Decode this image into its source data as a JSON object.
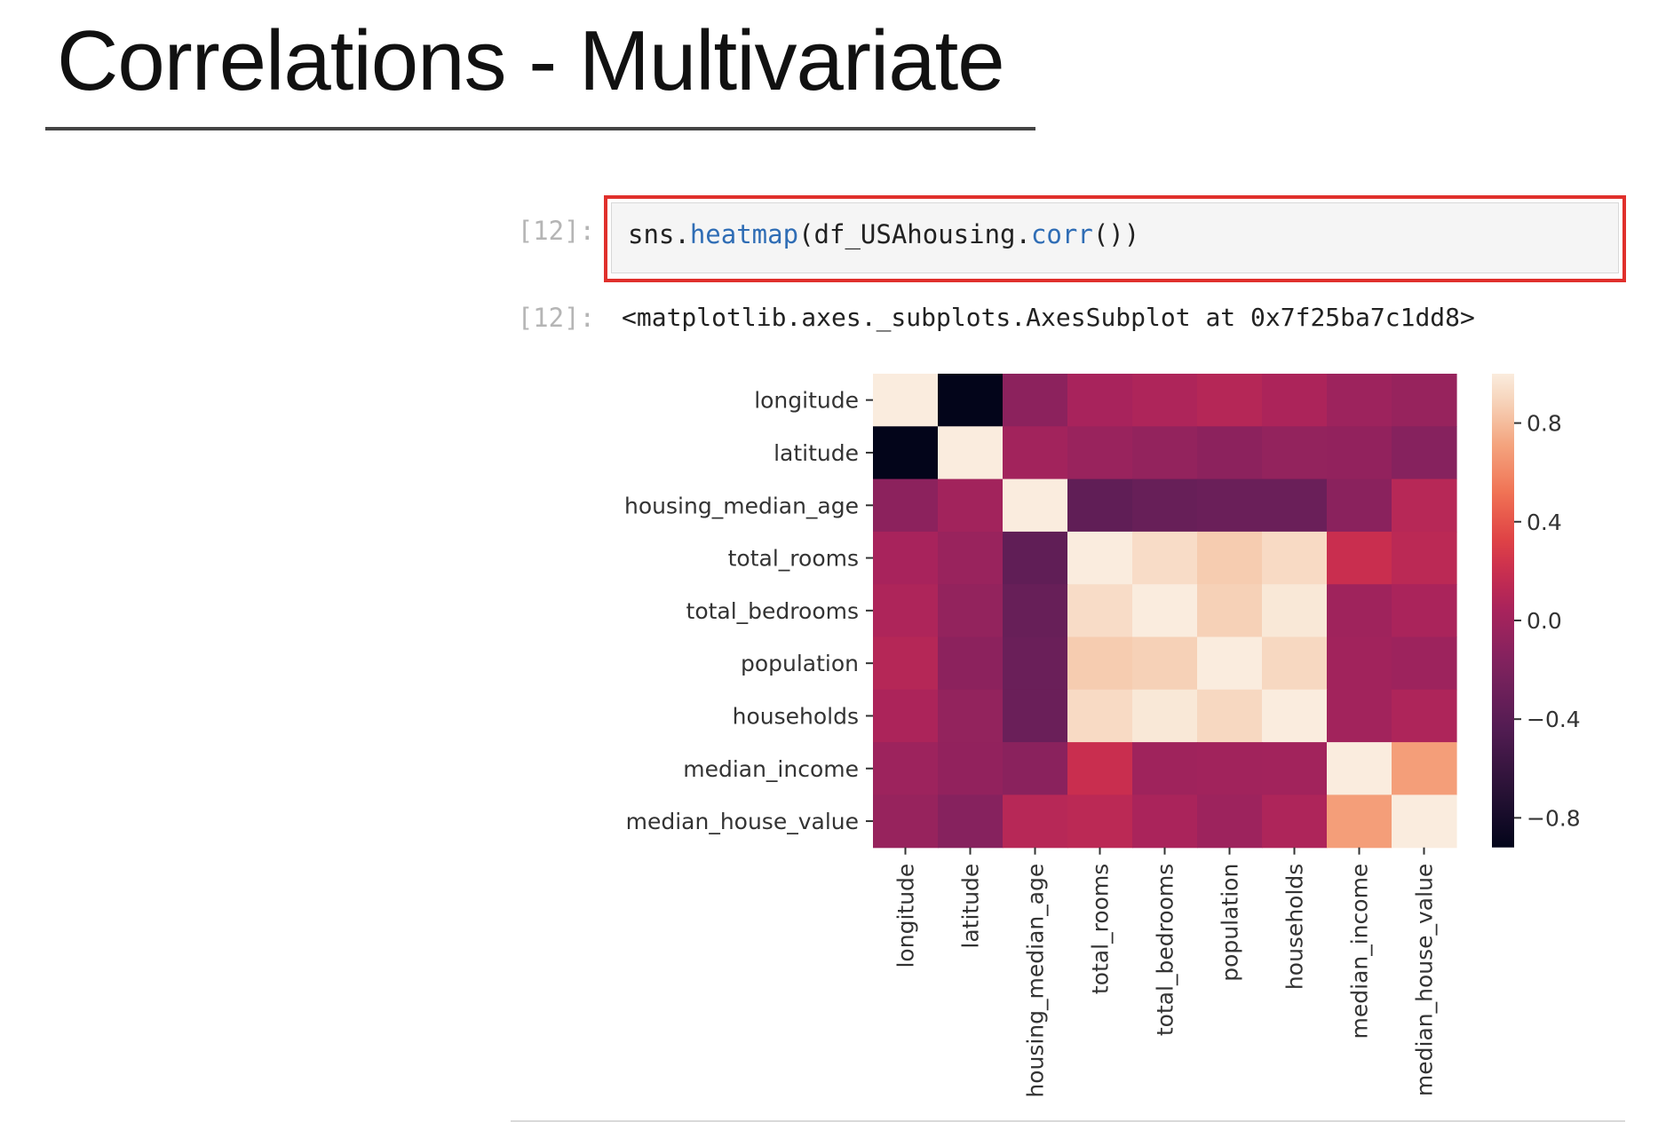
{
  "slide": {
    "title": "Correlations - Multivariate"
  },
  "notebook": {
    "input_prompt": "[12]:",
    "output_prompt": "[12]:",
    "code": {
      "obj": "sns.",
      "fn": "heatmap",
      "arg_start": "(df_USAhousing.",
      "method": "corr",
      "arg_end": "())"
    },
    "output_text": "<matplotlib.axes._subplots.AxesSubplot at 0x7f25ba7c1dd8>"
  },
  "chart_data": {
    "type": "heatmap",
    "title": "",
    "xlabel": "",
    "ylabel": "",
    "labels": [
      "longitude",
      "latitude",
      "housing_median_age",
      "total_rooms",
      "total_bedrooms",
      "population",
      "households",
      "median_income",
      "median_house_value"
    ],
    "matrix": [
      [
        1.0,
        -0.92,
        -0.11,
        0.04,
        0.07,
        0.1,
        0.06,
        -0.02,
        -0.05
      ],
      [
        -0.92,
        1.0,
        0.01,
        -0.04,
        -0.07,
        -0.11,
        -0.07,
        -0.08,
        -0.14
      ],
      [
        -0.11,
        0.01,
        1.0,
        -0.36,
        -0.32,
        -0.3,
        -0.3,
        -0.12,
        0.11
      ],
      [
        0.04,
        -0.04,
        -0.36,
        1.0,
        0.93,
        0.86,
        0.92,
        0.2,
        0.13
      ],
      [
        0.07,
        -0.07,
        -0.32,
        0.93,
        1.0,
        0.88,
        0.98,
        -0.01,
        0.05
      ],
      [
        0.1,
        -0.11,
        -0.3,
        0.86,
        0.88,
        1.0,
        0.91,
        0.0,
        -0.02
      ],
      [
        0.06,
        -0.07,
        -0.3,
        0.92,
        0.98,
        0.91,
        1.0,
        0.01,
        0.07
      ],
      [
        -0.02,
        -0.08,
        -0.12,
        0.2,
        -0.01,
        0.0,
        0.01,
        1.0,
        0.69
      ],
      [
        -0.05,
        -0.14,
        0.11,
        0.13,
        0.05,
        -0.02,
        0.07,
        0.69,
        1.0
      ]
    ],
    "colorbar": {
      "min": -0.92,
      "max": 1.0,
      "ticks": [
        0.8,
        0.4,
        0.0,
        -0.4,
        -0.8
      ],
      "tick_labels": [
        "0.8",
        "0.4",
        "0.0",
        "−0.4",
        "−0.8"
      ],
      "colormap": "rocket"
    }
  }
}
